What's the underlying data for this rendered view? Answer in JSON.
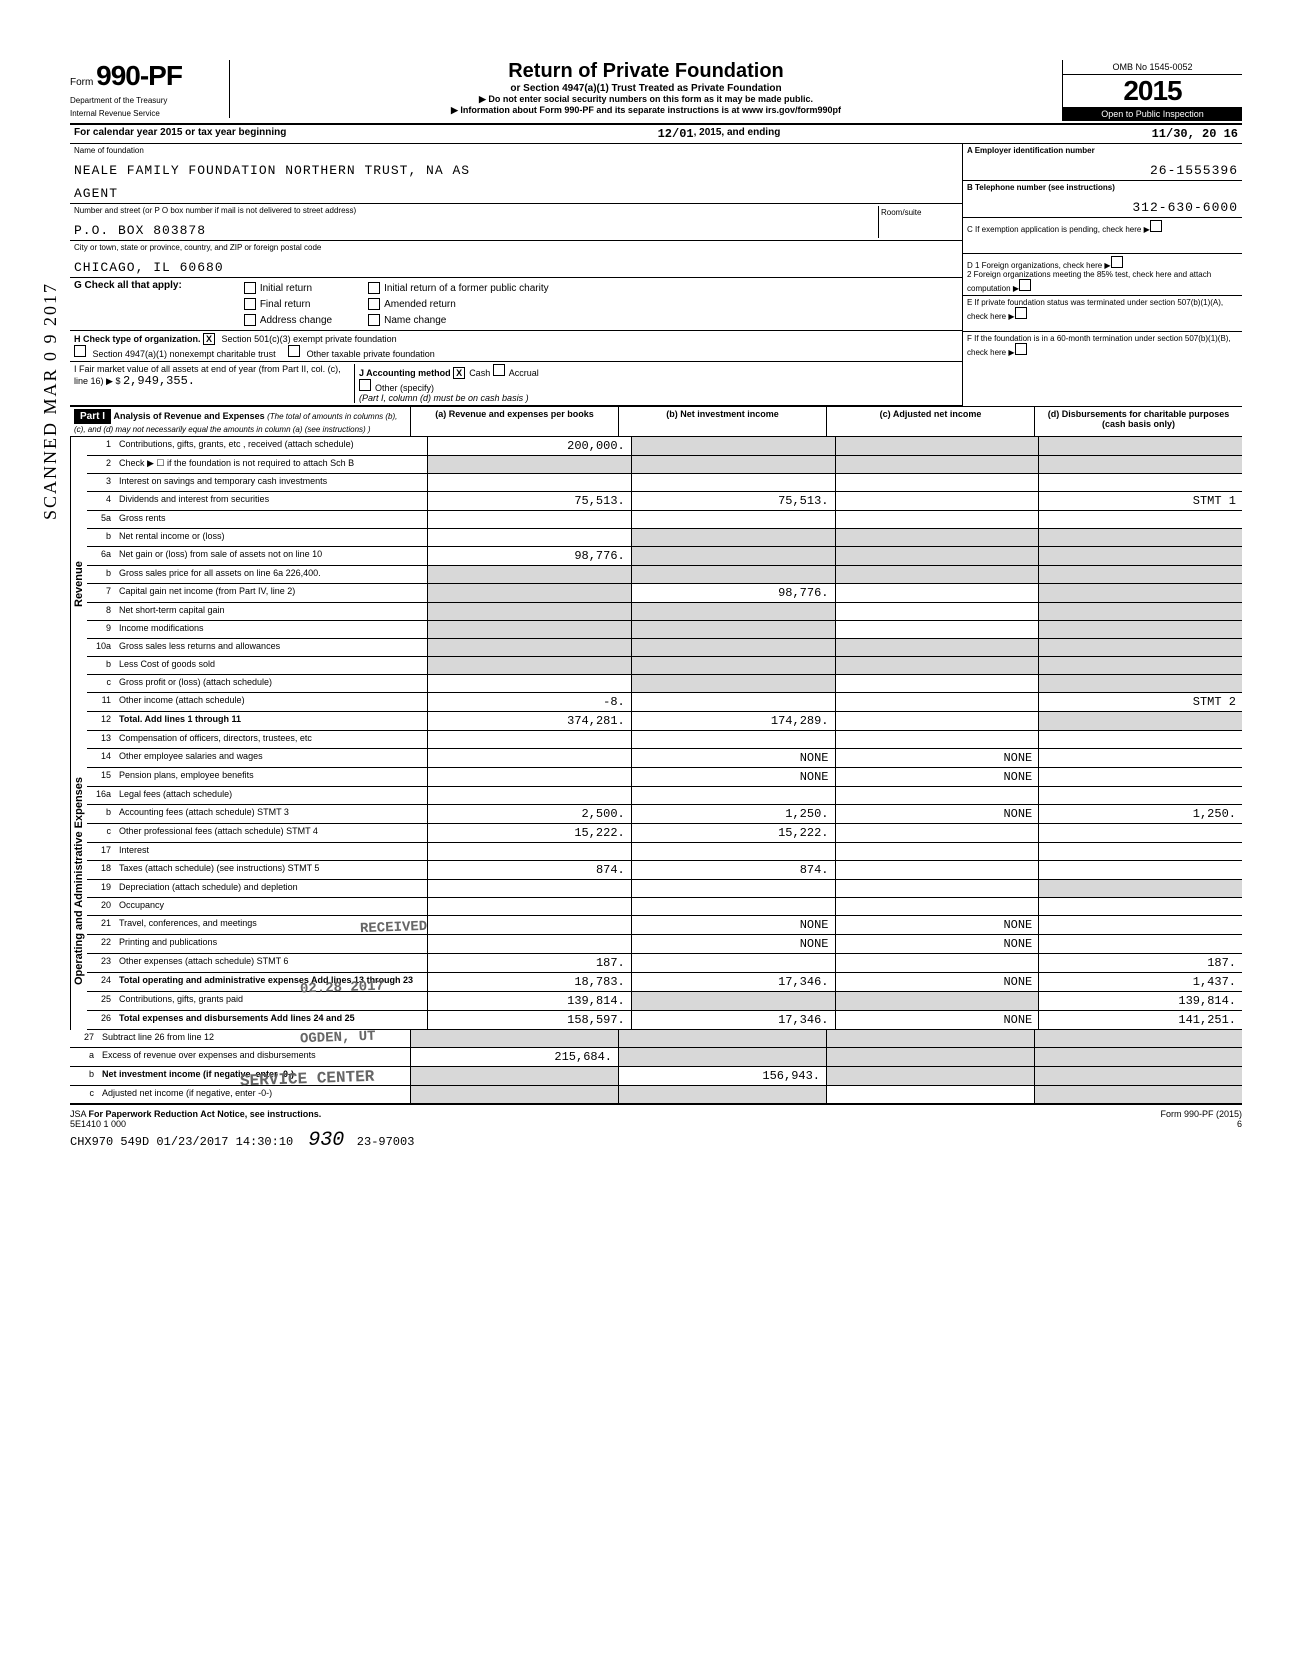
{
  "form": {
    "label": "Form",
    "number": "990-PF",
    "dept1": "Department of the Treasury",
    "dept2": "Internal Revenue Service"
  },
  "title": {
    "main": "Return of Private Foundation",
    "sub": "or Section 4947(a)(1) Trust Treated as Private Foundation",
    "note1": "▶ Do not enter social security numbers on this form as it may be made public.",
    "note2": "▶ Information about Form 990-PF and its separate instructions is at www irs.gov/form990pf"
  },
  "omb": {
    "num": "OMB No 1545-0052",
    "year": "2015",
    "inspect": "Open to Public Inspection"
  },
  "calendar": {
    "prefix": "For calendar year 2015 or tax year beginning",
    "begin": "12/01",
    "mid": ", 2015, and ending",
    "end": "11/30, 20 16"
  },
  "foundation": {
    "name_label": "Name of foundation",
    "name": "NEALE FAMILY FOUNDATION NORTHERN TRUST, NA AS",
    "name2": "AGENT",
    "addr_label": "Number and street (or P O  box number if mail is not delivered to street address)",
    "addr": "P.O. BOX 803878",
    "room_label": "Room/suite",
    "city_label": "City or town, state or province, country, and ZIP or foreign postal code",
    "city": "CHICAGO, IL 60680"
  },
  "right_info": {
    "a_label": "A  Employer identification number",
    "a_val": "26-1555396",
    "b_label": "B  Telephone number (see instructions)",
    "b_val": "312-630-6000",
    "c_label": "C  If exemption application is pending, check here",
    "d1": "D  1 Foreign organizations, check here",
    "d2": "2 Foreign organizations meeting the 85% test, check here and attach computation",
    "e": "E  If private foundation status was terminated under section 507(b)(1)(A), check here",
    "f": "F  If the foundation is in a 60-month termination under section 507(b)(1)(B), check here"
  },
  "g": {
    "label": "G Check all that apply:",
    "items": [
      "Initial return",
      "Final return",
      "Address change",
      "Initial return of a former public charity",
      "Amended return",
      "Name change"
    ]
  },
  "h": {
    "label": "H Check type of organization.",
    "opt1": "Section 501(c)(3) exempt private foundation",
    "opt1_checked": "X",
    "opt2": "Section 4947(a)(1) nonexempt charitable trust",
    "opt3": "Other taxable private foundation"
  },
  "i": {
    "label": "I  Fair market value of all assets at end of year (from Part II, col. (c), line 16) ▶ $",
    "val": "2,949,355.",
    "j_label": "J Accounting method",
    "cash": "Cash",
    "cash_x": "X",
    "accrual": "Accrual",
    "other": "Other (specify)",
    "note": "(Part I, column (d) must be on cash basis )"
  },
  "part1": {
    "tag": "Part I",
    "title": "Analysis of Revenue and Expenses",
    "note": "(The total of amounts in columns (b), (c), and (d) may not necessarily equal the amounts in column (a) (see instructions) )",
    "col_a": "(a) Revenue and expenses per books",
    "col_b": "(b) Net investment income",
    "col_c": "(c) Adjusted net income",
    "col_d": "(d) Disbursements for charitable purposes (cash basis only)"
  },
  "vert": {
    "revenue": "Revenue",
    "expenses": "Operating and Administrative Expenses"
  },
  "lines": {
    "1": {
      "n": "1",
      "l": "Contributions, gifts, grants, etc , received (attach schedule)",
      "a": "200,000.",
      "b": "",
      "c": "",
      "d": ""
    },
    "2": {
      "n": "2",
      "l": "Check ▶ ☐ if the foundation is not required to attach Sch B",
      "a": "",
      "b": "",
      "c": "",
      "d": ""
    },
    "3": {
      "n": "3",
      "l": "Interest on savings and temporary cash investments",
      "a": "",
      "b": "",
      "c": "",
      "d": ""
    },
    "4": {
      "n": "4",
      "l": "Dividends and interest from securities",
      "a": "75,513.",
      "b": "75,513.",
      "c": "",
      "d": "STMT 1"
    },
    "5a": {
      "n": "5a",
      "l": "Gross rents",
      "a": "",
      "b": "",
      "c": "",
      "d": ""
    },
    "5b": {
      "n": "b",
      "l": "Net rental income or (loss)",
      "a": "",
      "b": "",
      "c": "",
      "d": ""
    },
    "6a": {
      "n": "6a",
      "l": "Net gain or (loss) from sale of assets not on line 10",
      "a": "98,776.",
      "b": "",
      "c": "",
      "d": ""
    },
    "6b": {
      "n": "b",
      "l": "Gross sales price for all assets on line 6a       226,400.",
      "a": "",
      "b": "",
      "c": "",
      "d": ""
    },
    "7": {
      "n": "7",
      "l": "Capital gain net income (from Part IV, line 2)",
      "a": "",
      "b": "98,776.",
      "c": "",
      "d": ""
    },
    "8": {
      "n": "8",
      "l": "Net short-term capital gain",
      "a": "",
      "b": "",
      "c": "",
      "d": ""
    },
    "9": {
      "n": "9",
      "l": "Income modifications",
      "a": "",
      "b": "",
      "c": "",
      "d": ""
    },
    "10a": {
      "n": "10a",
      "l": "Gross sales less returns and allowances",
      "a": "",
      "b": "",
      "c": "",
      "d": ""
    },
    "10b": {
      "n": "b",
      "l": "Less Cost of goods sold",
      "a": "",
      "b": "",
      "c": "",
      "d": ""
    },
    "10c": {
      "n": "c",
      "l": "Gross profit or (loss) (attach schedule)",
      "a": "",
      "b": "",
      "c": "",
      "d": ""
    },
    "11": {
      "n": "11",
      "l": "Other income (attach schedule)",
      "a": "-8.",
      "b": "",
      "c": "",
      "d": "STMT 2"
    },
    "12": {
      "n": "12",
      "l": "Total. Add lines 1 through 11",
      "a": "374,281.",
      "b": "174,289.",
      "c": "",
      "d": ""
    },
    "13": {
      "n": "13",
      "l": "Compensation of officers, directors, trustees, etc",
      "a": "",
      "b": "",
      "c": "",
      "d": ""
    },
    "14": {
      "n": "14",
      "l": "Other employee salaries and wages",
      "a": "",
      "b": "NONE",
      "c": "NONE",
      "d": ""
    },
    "15": {
      "n": "15",
      "l": "Pension plans, employee benefits",
      "a": "",
      "b": "NONE",
      "c": "NONE",
      "d": ""
    },
    "16a": {
      "n": "16a",
      "l": "Legal fees (attach schedule)",
      "a": "",
      "b": "",
      "c": "",
      "d": ""
    },
    "16b": {
      "n": "b",
      "l": "Accounting fees (attach schedule) STMT 3",
      "a": "2,500.",
      "b": "1,250.",
      "c": "NONE",
      "d": "1,250."
    },
    "16c": {
      "n": "c",
      "l": "Other professional fees (attach schedule) STMT 4",
      "a": "15,222.",
      "b": "15,222.",
      "c": "",
      "d": ""
    },
    "17": {
      "n": "17",
      "l": "Interest",
      "a": "",
      "b": "",
      "c": "",
      "d": ""
    },
    "18": {
      "n": "18",
      "l": "Taxes (attach schedule) (see instructions) STMT 5",
      "a": "874.",
      "b": "874.",
      "c": "",
      "d": ""
    },
    "19": {
      "n": "19",
      "l": "Depreciation (attach schedule) and depletion",
      "a": "",
      "b": "",
      "c": "",
      "d": ""
    },
    "20": {
      "n": "20",
      "l": "Occupancy",
      "a": "",
      "b": "",
      "c": "",
      "d": ""
    },
    "21": {
      "n": "21",
      "l": "Travel, conferences, and meetings",
      "a": "",
      "b": "NONE",
      "c": "NONE",
      "d": ""
    },
    "22": {
      "n": "22",
      "l": "Printing and publications",
      "a": "",
      "b": "NONE",
      "c": "NONE",
      "d": ""
    },
    "23": {
      "n": "23",
      "l": "Other expenses (attach schedule) STMT 6",
      "a": "187.",
      "b": "",
      "c": "",
      "d": "187."
    },
    "24": {
      "n": "24",
      "l": "Total operating and administrative expenses Add lines 13 through 23",
      "a": "18,783.",
      "b": "17,346.",
      "c": "NONE",
      "d": "1,437."
    },
    "25": {
      "n": "25",
      "l": "Contributions, gifts, grants paid",
      "a": "139,814.",
      "b": "",
      "c": "",
      "d": "139,814."
    },
    "26": {
      "n": "26",
      "l": "Total expenses and disbursements Add lines 24 and 25",
      "a": "158,597.",
      "b": "17,346.",
      "c": "NONE",
      "d": "141,251."
    },
    "27": {
      "n": "27",
      "l": "Subtract line 26 from line 12",
      "a": "",
      "b": "",
      "c": "",
      "d": ""
    },
    "27a": {
      "n": "a",
      "l": "Excess of revenue over expenses and disbursements",
      "a": "215,684.",
      "b": "",
      "c": "",
      "d": ""
    },
    "27b": {
      "n": "b",
      "l": "Net investment income (if negative, enter -0-)",
      "a": "",
      "b": "156,943.",
      "c": "",
      "d": ""
    },
    "27c": {
      "n": "c",
      "l": "Adjusted net income (if negative, enter -0-)",
      "a": "",
      "b": "",
      "c": "",
      "d": ""
    }
  },
  "footer": {
    "jsa": "JSA",
    "paperwork": "For Paperwork Reduction Act Notice, see instructions.",
    "code": "5E1410 1 000",
    "stamp": "CHX970 549D 01/23/2017 14:30:10",
    "num": "23-97003",
    "formref": "Form 990-PF (2015)",
    "page": "6"
  },
  "side_stamp": "SCANNED MAR 0 9 2017",
  "received_stamp": "RECEIVED",
  "date_stamp": "02.28 2017",
  "ogden_stamp": "OGDEN, UT",
  "service_stamp": "SERVICE CENTER",
  "colors": {
    "bg": "#ffffff",
    "fg": "#000000",
    "shade": "#d8d8d8"
  }
}
